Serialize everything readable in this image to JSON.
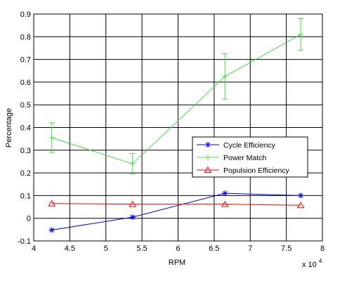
{
  "chart_data": {
    "type": "line",
    "title": "",
    "xlabel": "RPM",
    "ylabel": "Percentage",
    "x_multiplier_label": "x 10",
    "x_multiplier_exponent": "4",
    "xlim": [
      4,
      8
    ],
    "ylim": [
      -0.1,
      0.9
    ],
    "x_ticks": [
      "4",
      "4.5",
      "5",
      "5.5",
      "6",
      "6.5",
      "7",
      "7.5",
      "8"
    ],
    "y_ticks": [
      "-0.1",
      "0",
      "0.1",
      "0.2",
      "0.3",
      "0.4",
      "0.5",
      "0.6",
      "0.7",
      "0.8",
      "0.9"
    ],
    "grid": true,
    "legend_position": "center-right",
    "x": [
      4.25,
      5.37,
      6.65,
      7.7
    ],
    "series": [
      {
        "name": "Cycle Efficiency",
        "color": "#0000ff",
        "marker": "asterisk",
        "values": [
          -0.052,
          0.005,
          0.11,
          0.1
        ],
        "errors": [
          0,
          0,
          0,
          0
        ]
      },
      {
        "name": "Power Match",
        "color": "#44dd44",
        "marker": "plus",
        "values": [
          0.355,
          0.24,
          0.625,
          0.81
        ],
        "errors": [
          0.065,
          0.045,
          0.1,
          0.07
        ]
      },
      {
        "name": "Populsion Efficiency",
        "color": "#ff0000",
        "marker": "triangle",
        "values": [
          0.065,
          0.062,
          0.062,
          0.057
        ],
        "errors": [
          0,
          0,
          0,
          0
        ]
      }
    ]
  }
}
